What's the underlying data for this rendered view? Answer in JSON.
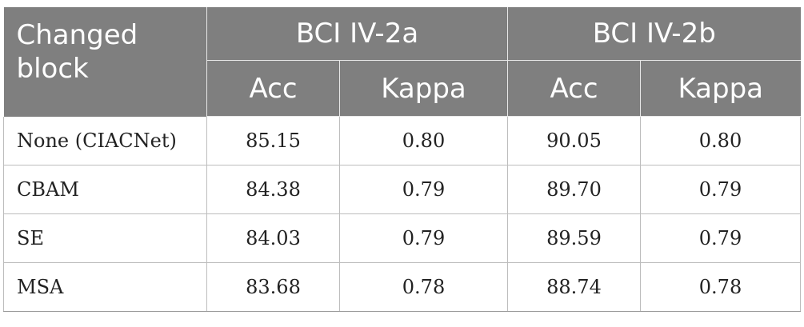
{
  "table": {
    "header": {
      "row_label": "Changed block",
      "groups": [
        "BCI IV-2a",
        "BCI IV-2b"
      ],
      "metrics": [
        "Acc",
        "Kappa",
        "Acc",
        "Kappa"
      ]
    },
    "rows": [
      {
        "label": "None (CIACNet)",
        "cells": [
          "85.15",
          "0.80",
          "90.05",
          "0.80"
        ]
      },
      {
        "label": "CBAM",
        "cells": [
          "84.38",
          "0.79",
          "89.70",
          "0.79"
        ]
      },
      {
        "label": "SE",
        "cells": [
          "84.03",
          "0.79",
          "89.59",
          "0.79"
        ]
      },
      {
        "label": "MSA",
        "cells": [
          "83.68",
          "0.78",
          "88.74",
          "0.78"
        ]
      }
    ]
  }
}
